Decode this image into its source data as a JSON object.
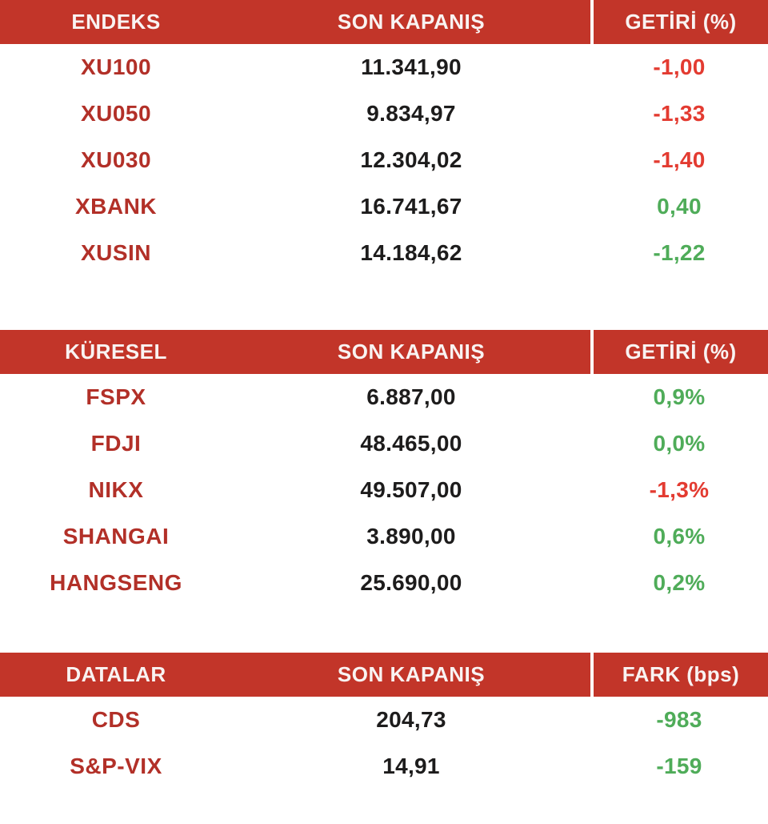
{
  "colors": {
    "header_bg": "#C23529",
    "header_text": "#F9F3F2",
    "label_red": "#B23028",
    "value_dark": "#1D1C1C",
    "positive_green": "#4FAC59",
    "negative_red": "#E33B31",
    "background": "#FFFFFF"
  },
  "tables": [
    {
      "id": "endeks",
      "headers": [
        "ENDEKS",
        "SON KAPANIŞ",
        "GETİRİ (%)"
      ],
      "rows": [
        {
          "label": "XU100",
          "close": "11.341,90",
          "change": "-1,00",
          "change_color": "negative"
        },
        {
          "label": "XU050",
          "close": "9.834,97",
          "change": "-1,33",
          "change_color": "negative"
        },
        {
          "label": "XU030",
          "close": "12.304,02",
          "change": "-1,40",
          "change_color": "negative"
        },
        {
          "label": "XBANK",
          "close": "16.741,67",
          "change": "0,40",
          "change_color": "positive"
        },
        {
          "label": "XUSIN",
          "close": "14.184,62",
          "change": "-1,22",
          "change_color": "positive"
        }
      ]
    },
    {
      "id": "kuresel",
      "headers": [
        "KÜRESEL",
        "SON KAPANIŞ",
        "GETİRİ (%)"
      ],
      "rows": [
        {
          "label": "FSPX",
          "close": "6.887,00",
          "change": "0,9%",
          "change_color": "positive"
        },
        {
          "label": "FDJI",
          "close": "48.465,00",
          "change": "0,0%",
          "change_color": "positive"
        },
        {
          "label": "NIKX",
          "close": "49.507,00",
          "change": "-1,3%",
          "change_color": "negative"
        },
        {
          "label": "SHANGAI",
          "close": "3.890,00",
          "change": "0,6%",
          "change_color": "positive"
        },
        {
          "label": "HANGSENG",
          "close": "25.690,00",
          "change": "0,2%",
          "change_color": "positive"
        }
      ]
    },
    {
      "id": "datalar",
      "headers": [
        "DATALAR",
        "SON KAPANIŞ",
        "FARK (bps)"
      ],
      "rows": [
        {
          "label": "CDS",
          "close": "204,73",
          "change": "-983",
          "change_color": "positive"
        },
        {
          "label": "S&P-VIX",
          "close": "14,91",
          "change": "-159",
          "change_color": "positive"
        }
      ]
    }
  ],
  "chart_data": [
    {
      "type": "table",
      "title": "ENDEKS",
      "columns": [
        "ENDEKS",
        "SON KAPANIŞ",
        "GETİRİ (%)"
      ],
      "rows": [
        [
          "XU100",
          "11.341,90",
          "-1,00"
        ],
        [
          "XU050",
          "9.834,97",
          "-1,33"
        ],
        [
          "XU030",
          "12.304,02",
          "-1,40"
        ],
        [
          "XBANK",
          "16.741,67",
          "0,40"
        ],
        [
          "XUSIN",
          "14.184,62",
          "-1,22"
        ]
      ]
    },
    {
      "type": "table",
      "title": "KÜRESEL",
      "columns": [
        "KÜRESEL",
        "SON KAPANIŞ",
        "GETİRİ (%)"
      ],
      "rows": [
        [
          "FSPX",
          "6.887,00",
          "0,9%"
        ],
        [
          "FDJI",
          "48.465,00",
          "0,0%"
        ],
        [
          "NIKX",
          "49.507,00",
          "-1,3%"
        ],
        [
          "SHANGAI",
          "3.890,00",
          "0,6%"
        ],
        [
          "HANGSENG",
          "25.690,00",
          "0,2%"
        ]
      ]
    },
    {
      "type": "table",
      "title": "DATALAR",
      "columns": [
        "DATALAR",
        "SON KAPANIŞ",
        "FARK (bps)"
      ],
      "rows": [
        [
          "CDS",
          "204,73",
          "-983"
        ],
        [
          "S&P-VIX",
          "14,91",
          "-159"
        ]
      ]
    }
  ]
}
